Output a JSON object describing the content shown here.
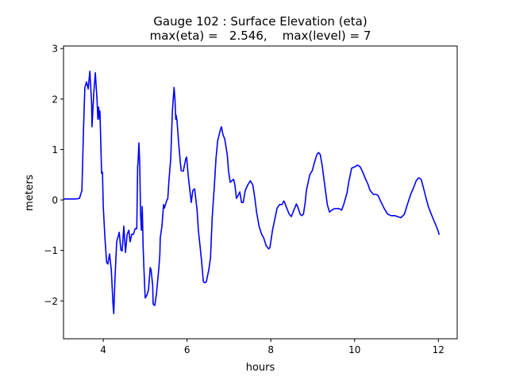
{
  "chart_data": {
    "type": "line",
    "title": "Gauge 102 : Surface Elevation (eta)",
    "subtitle": "max(eta) =   2.546,    max(level) = 7",
    "xlabel": "hours",
    "ylabel": "meters",
    "xlim": [
      3.05,
      12.45
    ],
    "ylim": [
      -2.75,
      3.05
    ],
    "xticks": [
      4,
      6,
      8,
      10,
      12
    ],
    "xtick_labels": [
      "4",
      "6",
      "8",
      "10",
      "12"
    ],
    "yticks": [
      -2,
      -1,
      0,
      1,
      2,
      3
    ],
    "ytick_labels": [
      "−2",
      "−1",
      "0",
      "1",
      "2",
      "3"
    ],
    "grid": false,
    "series": [
      {
        "name": "eta",
        "color": "#0000ff",
        "x": [
          3.05,
          3.34,
          3.43,
          3.49,
          3.53,
          3.56,
          3.6,
          3.64,
          3.68,
          3.72,
          3.73,
          3.77,
          3.81,
          3.85,
          3.87,
          3.89,
          3.91,
          3.92,
          3.94,
          3.96,
          3.98,
          4.0,
          4.04,
          4.08,
          4.11,
          4.15,
          4.19,
          4.23,
          4.25,
          4.28,
          4.32,
          4.38,
          4.42,
          4.45,
          4.49,
          4.53,
          4.57,
          4.61,
          4.64,
          4.68,
          4.72,
          4.76,
          4.8,
          4.82,
          4.83,
          4.85,
          4.87,
          4.89,
          4.91,
          4.93,
          4.95,
          4.97,
          5.0,
          5.04,
          5.08,
          5.12,
          5.14,
          5.18,
          5.19,
          5.23,
          5.27,
          5.33,
          5.35,
          5.36,
          5.4,
          5.44,
          5.46,
          5.5,
          5.52,
          5.54,
          5.57,
          5.61,
          5.63,
          5.65,
          5.69,
          5.71,
          5.73,
          5.74,
          5.76,
          5.8,
          5.84,
          5.86,
          5.91,
          5.97,
          5.99,
          6.03,
          6.09,
          6.1,
          6.14,
          6.18,
          6.24,
          6.27,
          6.31,
          6.35,
          6.39,
          6.43,
          6.46,
          6.52,
          6.56,
          6.6,
          6.65,
          6.69,
          6.73,
          6.79,
          6.82,
          6.86,
          6.9,
          6.96,
          6.99,
          7.03,
          7.07,
          7.11,
          7.14,
          7.18,
          7.22,
          7.26,
          7.3,
          7.34,
          7.39,
          7.45,
          7.51,
          7.57,
          7.62,
          7.66,
          7.72,
          7.78,
          7.83,
          7.89,
          7.95,
          7.98,
          8.04,
          8.1,
          8.15,
          8.21,
          8.27,
          8.31,
          8.32,
          8.38,
          8.44,
          8.49,
          8.55,
          8.61,
          8.64,
          8.7,
          8.74,
          8.78,
          8.82,
          8.85,
          8.93,
          8.99,
          9.04,
          9.1,
          9.14,
          9.18,
          9.23,
          9.29,
          9.35,
          9.4,
          9.46,
          9.52,
          9.57,
          9.63,
          9.69,
          9.74,
          9.82,
          9.86,
          9.93,
          10.01,
          10.07,
          10.13,
          10.18,
          10.26,
          10.32,
          10.37,
          10.45,
          10.51,
          10.56,
          10.62,
          10.7,
          10.79,
          10.87,
          10.96,
          11.02,
          11.11,
          11.19,
          11.26,
          11.34,
          11.42,
          11.47,
          11.53,
          11.59,
          11.64,
          11.7,
          11.76,
          11.83,
          11.91,
          11.99,
          12.02
        ],
        "y": [
          0.02,
          0.02,
          0.03,
          0.19,
          1.45,
          2.23,
          2.34,
          2.2,
          2.55,
          1.92,
          1.45,
          2.08,
          2.52,
          2.0,
          1.6,
          1.84,
          1.6,
          1.76,
          1.13,
          0.53,
          0.55,
          -0.13,
          -0.75,
          -1.23,
          -1.27,
          -1.07,
          -1.38,
          -2.04,
          -2.25,
          -1.54,
          -0.83,
          -0.64,
          -0.99,
          -1.01,
          -0.52,
          -1.04,
          -0.68,
          -0.6,
          -0.83,
          -0.68,
          -0.68,
          -0.57,
          -0.57,
          0.66,
          0.74,
          1.13,
          0.74,
          -0.28,
          -0.6,
          -0.13,
          -0.91,
          -1.35,
          -1.94,
          -1.89,
          -1.78,
          -1.34,
          -1.38,
          -1.7,
          -2.06,
          -2.09,
          -1.86,
          -1.32,
          -1.07,
          -0.75,
          -0.52,
          -0.09,
          -0.16,
          -0.05,
          0.0,
          0.03,
          0.42,
          0.82,
          1.29,
          1.76,
          2.23,
          2.0,
          1.6,
          1.68,
          1.57,
          1.13,
          0.74,
          0.58,
          0.57,
          0.82,
          0.85,
          0.47,
          0.03,
          -0.05,
          0.19,
          0.22,
          -0.2,
          -0.6,
          -0.91,
          -1.23,
          -1.62,
          -1.64,
          -1.62,
          -1.38,
          -1.15,
          -0.36,
          0.27,
          0.82,
          1.17,
          1.37,
          1.45,
          1.29,
          1.21,
          0.9,
          0.58,
          0.35,
          0.38,
          0.41,
          0.31,
          0.03,
          0.09,
          0.16,
          -0.05,
          -0.05,
          0.19,
          0.3,
          0.38,
          0.3,
          0.03,
          -0.25,
          -0.52,
          -0.68,
          -0.75,
          -0.91,
          -0.97,
          -0.94,
          -0.6,
          -0.36,
          -0.16,
          -0.09,
          -0.09,
          -0.02,
          -0.03,
          -0.16,
          -0.28,
          -0.33,
          -0.2,
          -0.08,
          -0.13,
          -0.28,
          -0.31,
          -0.28,
          -0.05,
          0.19,
          0.5,
          0.58,
          0.74,
          0.9,
          0.94,
          0.9,
          0.66,
          0.27,
          -0.09,
          -0.24,
          -0.2,
          -0.17,
          -0.17,
          -0.17,
          -0.2,
          -0.09,
          0.14,
          0.35,
          0.63,
          0.66,
          0.69,
          0.66,
          0.58,
          0.42,
          0.31,
          0.19,
          0.11,
          0.11,
          0.09,
          -0.02,
          -0.16,
          -0.28,
          -0.31,
          -0.31,
          -0.33,
          -0.35,
          -0.28,
          -0.09,
          0.11,
          0.27,
          0.38,
          0.44,
          0.41,
          0.25,
          0.06,
          -0.13,
          -0.28,
          -0.44,
          -0.6,
          -0.69
        ]
      }
    ]
  }
}
